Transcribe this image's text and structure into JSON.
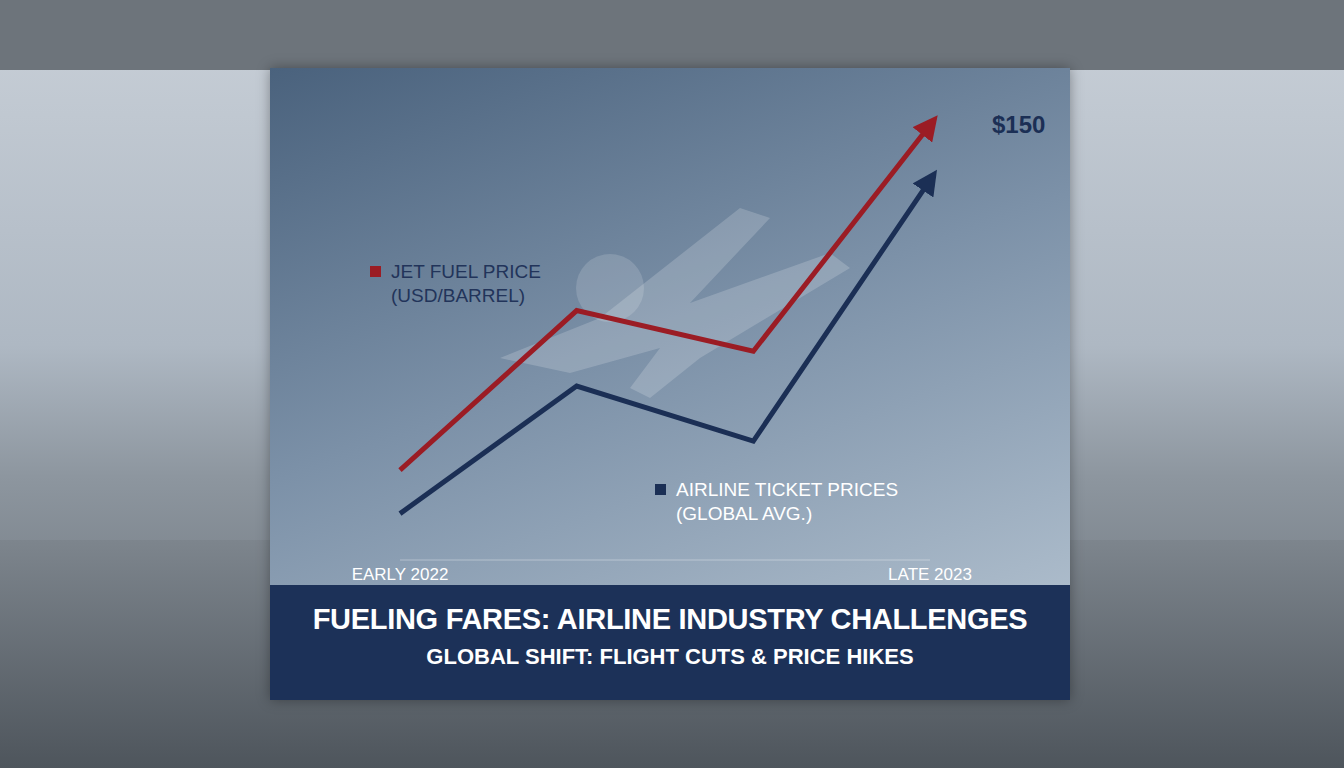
{
  "chart_data": {
    "type": "line",
    "title": "FUELING FARES: AIRLINE INDUSTRY CHALLENGES",
    "subtitle": "GLOBAL SHIFT: FLIGHT CUTS & PRICE HIKES",
    "categories": [
      "EARLY 2022",
      null,
      null,
      "LATE 2023"
    ],
    "series": [
      {
        "name": "JET FUEL PRICE (USD/BARREL)",
        "color": "#9b1c24",
        "marker": "arrow",
        "values": [
          31,
          86,
          72,
          150
        ],
        "value_labels": [
          null,
          null,
          null,
          "$150"
        ]
      },
      {
        "name": "AIRLINE TICKET PRICES (GLOBAL AVG.)",
        "color": "#1b2f55",
        "marker": "arrow",
        "values": [
          16,
          60,
          41,
          131
        ]
      }
    ],
    "ylim": [
      0,
      160
    ],
    "tick_labels": "x",
    "grid": false,
    "data_labels": true
  }
}
